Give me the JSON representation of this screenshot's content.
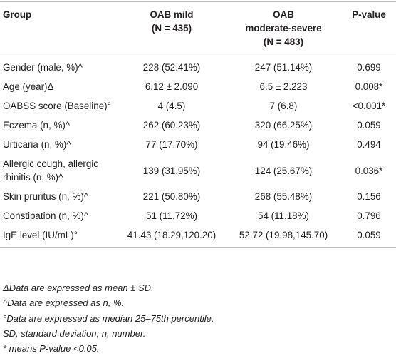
{
  "table": {
    "header": [
      [
        "Group"
      ],
      [
        "OAB mild",
        "(N = 435)"
      ],
      [
        "OAB",
        "moderate-severe",
        "(N = 483)"
      ],
      [
        "P-value"
      ]
    ],
    "rows": [
      [
        "Gender (male, %)^",
        "228 (52.41%)",
        "247 (51.14%)",
        "0.699"
      ],
      [
        "Age (year)Δ",
        "6.12 ± 2.090",
        "6.5 ± 2.223",
        "0.008*"
      ],
      [
        "OABSS score (Baseline)°",
        "4 (4.5)",
        "7 (6.8)",
        "<0.001*"
      ],
      [
        "Eczema (n, %)^",
        "262 (60.23%)",
        "320 (66.25%)",
        "0.059"
      ],
      [
        "Urticaria (n, %)^",
        "77 (17.70%)",
        "94 (19.46%)",
        "0.494"
      ],
      [
        "Allergic cough, allergic rhinitis (n, %)^",
        "139 (31.95%)",
        "124 (25.67%)",
        "0.036*"
      ],
      [
        "Skin pruritus (n, %)^",
        "221 (50.80%)",
        "268 (55.48%)",
        "0.156"
      ],
      [
        "Constipation (n, %)^",
        "51 (11.72%)",
        "54 (11.18%)",
        "0.796"
      ],
      [
        "IgE level (IU/mL)°",
        "41.43 (18.29,120.20)",
        "52.72 (19.98,145.70)",
        "0.059"
      ]
    ]
  },
  "footnotes": [
    "ΔData are expressed as mean ± SD.",
    "^Data are expressed as n, %.",
    "°Data are expressed as median 25–75th percentile.",
    "SD, standard deviation; n, number.",
    "* means P-value <0.05."
  ]
}
